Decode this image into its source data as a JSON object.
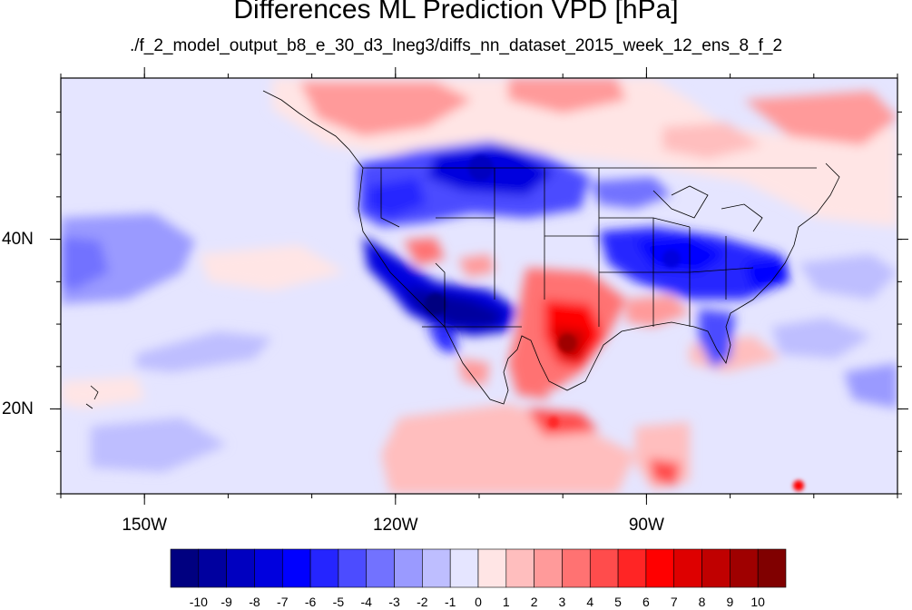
{
  "title": "Differences ML Prediction VPD [hPa]",
  "subtitle": "./f_2_model_output_b8_e_30_d3_lneg3/diffs_nn_dataset_2015_week_12_ens_8_f_2",
  "map": {
    "lon_range": [
      -160,
      -60
    ],
    "lat_range": [
      10,
      59
    ],
    "lon_ticks": [
      {
        "value": -150,
        "label": "150W"
      },
      {
        "value": -120,
        "label": "120W"
      },
      {
        "value": -90,
        "label": "90W"
      }
    ],
    "lat_ticks": [
      {
        "value": 40,
        "label": "40N"
      },
      {
        "value": 20,
        "label": "20N"
      }
    ]
  },
  "colorbar": {
    "labels": [
      "-10",
      "-9",
      "-8",
      "-7",
      "-6",
      "-5",
      "-4",
      "-3",
      "-2",
      "-1",
      "0",
      "1",
      "2",
      "3",
      "4",
      "5",
      "6",
      "7",
      "8",
      "9",
      "10"
    ],
    "colors": [
      "#000080",
      "#00009f",
      "#0000c0",
      "#0000de",
      "#0000ff",
      "#2525ff",
      "#4c4cff",
      "#7272ff",
      "#9a9aff",
      "#bebeff",
      "#e5e5ff",
      "#ffe5e5",
      "#ffbebe",
      "#ff9a9a",
      "#ff7272",
      "#ff4c4c",
      "#ff2525",
      "#ff0000",
      "#de0000",
      "#c00000",
      "#9f0000",
      "#800000"
    ]
  }
}
